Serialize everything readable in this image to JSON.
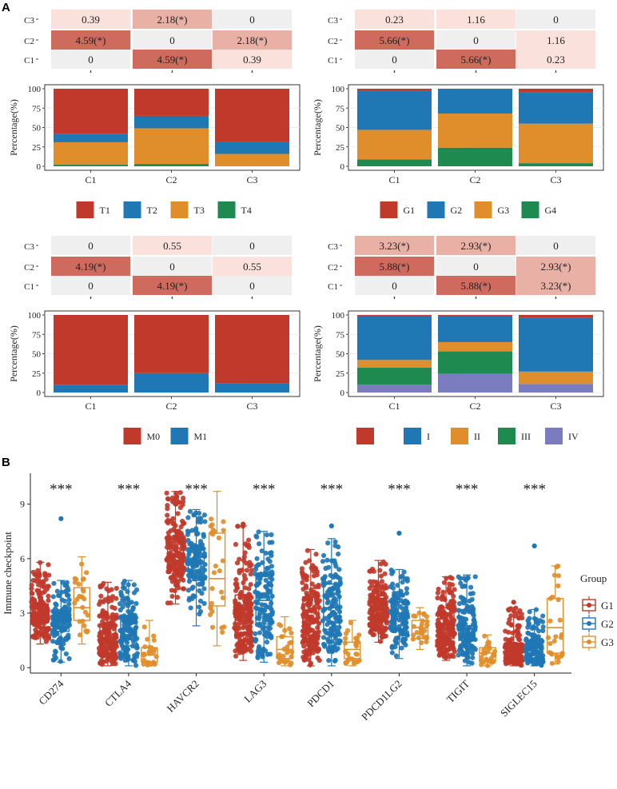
{
  "panel_labels": {
    "a": "A",
    "b": "B"
  },
  "colors": {
    "red": "#c0392b",
    "blue": "#1f77b4",
    "orange": "#e08e2b",
    "green": "#1e8a50",
    "purple": "#7b7bbf",
    "heat_strong": "#cf6a5e",
    "heat_mid": "#e9b0a5",
    "heat_light": "#fbe1dc",
    "heat_bg": "#efefef",
    "plot_bg": "#ebebeb"
  },
  "chart_data": [
    {
      "id": "T-stage",
      "type": "bar",
      "stacked": true,
      "heatmap": {
        "rows": [
          "C3",
          "C2",
          "C1"
        ],
        "cells": [
          [
            "0.39",
            "2.18(*)",
            "0"
          ],
          [
            "4.59(*)",
            "0",
            "2.18(*)"
          ],
          [
            "0",
            "4.59(*)",
            "0.39"
          ]
        ],
        "levels": [
          [
            "light",
            "mid",
            "bg"
          ],
          [
            "strong",
            "bg",
            "mid"
          ],
          [
            "bg",
            "strong",
            "light"
          ]
        ]
      },
      "categories": [
        "C1",
        "C2",
        "C3"
      ],
      "ylabel": "Percentage(%)",
      "yticks": [
        0,
        25,
        50,
        75,
        100
      ],
      "ylim": [
        0,
        100
      ],
      "series": [
        {
          "name": "T4",
          "color": "green",
          "values": [
            2,
            3,
            0
          ]
        },
        {
          "name": "T3",
          "color": "orange",
          "values": [
            29,
            46,
            16
          ]
        },
        {
          "name": "T2",
          "color": "blue",
          "values": [
            11,
            16,
            15
          ]
        },
        {
          "name": "T1",
          "color": "red",
          "values": [
            58,
            35,
            69
          ]
        }
      ],
      "legend": [
        "T1",
        "T2",
        "T3",
        "T4"
      ],
      "legend_colors": [
        "red",
        "blue",
        "orange",
        "green"
      ]
    },
    {
      "id": "Grade",
      "type": "bar",
      "stacked": true,
      "heatmap": {
        "rows": [
          "C3",
          "C2",
          "C1"
        ],
        "cells": [
          [
            "0.23",
            "1.16",
            "0"
          ],
          [
            "5.66(*)",
            "0",
            "1.16"
          ],
          [
            "0",
            "5.66(*)",
            "0.23"
          ]
        ],
        "levels": [
          [
            "light",
            "light",
            "bg"
          ],
          [
            "strong",
            "bg",
            "light"
          ],
          [
            "bg",
            "strong",
            "light"
          ]
        ]
      },
      "categories": [
        "C1",
        "C2",
        "C3"
      ],
      "ylabel": "Percentage(%)",
      "yticks": [
        0,
        25,
        50,
        75,
        100
      ],
      "ylim": [
        0,
        100
      ],
      "series": [
        {
          "name": "G4",
          "color": "green",
          "values": [
            9,
            24,
            4
          ]
        },
        {
          "name": "G3",
          "color": "orange",
          "values": [
            38,
            44,
            51
          ]
        },
        {
          "name": "G2",
          "color": "blue",
          "values": [
            50,
            32,
            40
          ]
        },
        {
          "name": "G1",
          "color": "red",
          "values": [
            3,
            0,
            5
          ]
        }
      ],
      "legend": [
        "G1",
        "G2",
        "G3",
        "G4"
      ],
      "legend_colors": [
        "red",
        "blue",
        "orange",
        "green"
      ]
    },
    {
      "id": "M-stage",
      "type": "bar",
      "stacked": true,
      "heatmap": {
        "rows": [
          "C3",
          "C2",
          "C1"
        ],
        "cells": [
          [
            "0",
            "0.55",
            "0"
          ],
          [
            "4.19(*)",
            "0",
            "0.55"
          ],
          [
            "0",
            "4.19(*)",
            "0"
          ]
        ],
        "levels": [
          [
            "bg",
            "light",
            "bg"
          ],
          [
            "strong",
            "bg",
            "light"
          ],
          [
            "bg",
            "strong",
            "bg"
          ]
        ]
      },
      "categories": [
        "C1",
        "C2",
        "C3"
      ],
      "ylabel": "Percentage(%)",
      "yticks": [
        0,
        25,
        50,
        75,
        100
      ],
      "ylim": [
        0,
        100
      ],
      "series": [
        {
          "name": "M1",
          "color": "blue",
          "values": [
            10,
            25,
            12
          ]
        },
        {
          "name": "M0",
          "color": "red",
          "values": [
            90,
            75,
            88
          ]
        }
      ],
      "legend": [
        "M0",
        "M1"
      ],
      "legend_colors": [
        "red",
        "blue"
      ]
    },
    {
      "id": "Stage",
      "type": "bar",
      "stacked": true,
      "heatmap": {
        "rows": [
          "C3",
          "C2",
          "C1"
        ],
        "cells": [
          [
            "3.23(*)",
            "2.93(*)",
            "0"
          ],
          [
            "5.88(*)",
            "0",
            "2.93(*)"
          ],
          [
            "0",
            "5.88(*)",
            "3.23(*)"
          ]
        ],
        "levels": [
          [
            "mid",
            "mid",
            "bg"
          ],
          [
            "strong",
            "bg",
            "mid"
          ],
          [
            "bg",
            "strong",
            "mid"
          ]
        ]
      },
      "categories": [
        "C1",
        "C2",
        "C3"
      ],
      "ylabel": "Percentage(%)",
      "yticks": [
        0,
        25,
        50,
        75,
        100
      ],
      "ylim": [
        0,
        100
      ],
      "series": [
        {
          "name": "IV",
          "color": "purple",
          "values": [
            10,
            24,
            11
          ]
        },
        {
          "name": "III",
          "color": "green",
          "values": [
            22,
            29,
            0
          ]
        },
        {
          "name": "II",
          "color": "orange",
          "values": [
            10,
            12,
            16
          ]
        },
        {
          "name": "I",
          "color": "blue",
          "values": [
            57,
            34,
            69
          ]
        },
        {
          "name": "",
          "color": "red",
          "values": [
            1,
            1,
            4
          ]
        }
      ],
      "legend": [
        "",
        "I",
        "II",
        "III",
        "IV"
      ],
      "legend_colors": [
        "red",
        "blue",
        "orange",
        "green",
        "purple"
      ]
    },
    {
      "id": "checkpoint",
      "type": "box",
      "ylabel": "Immune checkpoint",
      "ylim": [
        -0.3,
        10.7
      ],
      "yticks": [
        0,
        3,
        6,
        9
      ],
      "categories": [
        "CD274",
        "CTLA4",
        "HAVCR2",
        "LAG3",
        "PDCD1",
        "PDCD1LG2",
        "TIGIT",
        "SIGLEC15"
      ],
      "significance": [
        "***",
        "***",
        "***",
        "***",
        "***",
        "***",
        "***",
        "***"
      ],
      "legend_title": "Group",
      "groups": [
        "G1",
        "G2",
        "G3"
      ],
      "group_colors": [
        "red",
        "blue",
        "orange"
      ],
      "boxes": [
        [
          [
            1.3,
            2.5,
            3.0,
            3.5,
            5.8
          ],
          [
            0.3,
            2.0,
            2.6,
            3.1,
            4.8
          ],
          [
            1.3,
            2.6,
            3.3,
            4.4,
            6.1
          ]
        ],
        [
          [
            0.1,
            1.0,
            1.6,
            2.4,
            4.7
          ],
          [
            0.1,
            1.2,
            2.0,
            2.8,
            4.8
          ],
          [
            0.1,
            0.3,
            0.7,
            1.1,
            2.6
          ]
        ],
        [
          [
            3.5,
            5.4,
            6.2,
            7.1,
            9.7
          ],
          [
            2.3,
            4.8,
            5.8,
            6.6,
            8.7
          ],
          [
            1.2,
            3.4,
            4.9,
            7.4,
            9.7
          ]
        ],
        [
          [
            0.4,
            1.9,
            3.0,
            4.0,
            7.8
          ],
          [
            0.3,
            2.4,
            3.7,
            5.1,
            7.5
          ],
          [
            0.1,
            0.5,
            1.0,
            1.7,
            2.8
          ]
        ],
        [
          [
            0.1,
            1.6,
            2.7,
            3.9,
            6.5
          ],
          [
            0.1,
            2.1,
            3.3,
            4.6,
            7.1
          ],
          [
            0.1,
            0.5,
            1.0,
            1.4,
            2.6
          ]
        ],
        [
          [
            1.4,
            2.6,
            3.2,
            3.8,
            5.9
          ],
          [
            0.5,
            2.1,
            2.8,
            3.6,
            5.4
          ],
          [
            1.0,
            1.6,
            2.2,
            2.6,
            3.3
          ]
        ],
        [
          [
            0.4,
            1.6,
            2.4,
            3.3,
            5.0
          ],
          [
            0.1,
            1.5,
            2.3,
            3.2,
            5.1
          ],
          [
            0.1,
            0.4,
            0.8,
            1.1,
            1.8
          ]
        ],
        [
          [
            0.1,
            0.5,
            1.0,
            1.3,
            3.3
          ],
          [
            0.1,
            0.5,
            1.1,
            1.5,
            3.2
          ],
          [
            0.2,
            0.8,
            2.2,
            3.8,
            5.6
          ]
        ]
      ],
      "outliers": [
        {
          "cat": 0,
          "group": 1,
          "value": 8.2
        },
        {
          "cat": 3,
          "group": 0,
          "value": 7.9
        },
        {
          "cat": 4,
          "group": 1,
          "value": 7.8
        },
        {
          "cat": 5,
          "group": 1,
          "value": 7.4
        },
        {
          "cat": 7,
          "group": 1,
          "value": 6.7
        },
        {
          "cat": 7,
          "group": 0,
          "value": 3.6
        }
      ],
      "point_counts": [
        180,
        140,
        26
      ]
    }
  ]
}
